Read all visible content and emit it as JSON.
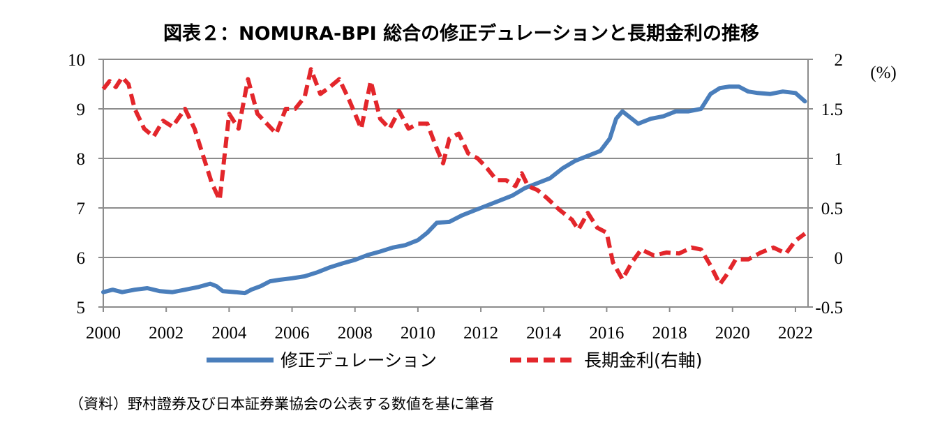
{
  "chart_data": {
    "type": "line",
    "title": "図表２：NOMURA-BPI 総合の修正デュレーションと長期金利の推移",
    "y2_unit": "(%)",
    "source": "（資料）野村證券及び日本証券業協会の公表する数値を基に筆者",
    "x_ticks": [
      "2000",
      "2002",
      "2004",
      "2006",
      "2008",
      "2010",
      "2012",
      "2014",
      "2016",
      "2018",
      "2020",
      "2022"
    ],
    "y_ticks": [
      "5",
      "6",
      "7",
      "8",
      "9",
      "10"
    ],
    "y2_ticks": [
      "-0.5",
      "0",
      "0.5",
      "1",
      "1.5",
      "2"
    ],
    "xlim": [
      2000,
      2022.4
    ],
    "ylim": [
      5,
      10
    ],
    "y2lim": [
      -0.5,
      2
    ],
    "grid": true,
    "legend_position": "bottom",
    "series": [
      {
        "name": "修正デュレーション",
        "axis": "left",
        "color": "#4a7ebb",
        "style": "solid",
        "x": [
          2000.0,
          2000.3,
          2000.6,
          2001.0,
          2001.4,
          2001.8,
          2002.2,
          2002.6,
          2003.0,
          2003.4,
          2003.6,
          2003.8,
          2004.2,
          2004.5,
          2004.7,
          2005.0,
          2005.3,
          2005.6,
          2006.0,
          2006.4,
          2006.8,
          2007.2,
          2007.6,
          2008.0,
          2008.4,
          2008.8,
          2009.2,
          2009.6,
          2010.0,
          2010.3,
          2010.6,
          2011.0,
          2011.4,
          2011.8,
          2012.2,
          2012.6,
          2013.0,
          2013.4,
          2013.8,
          2014.2,
          2014.6,
          2015.0,
          2015.4,
          2015.8,
          2016.1,
          2016.3,
          2016.5,
          2016.7,
          2017.0,
          2017.4,
          2017.8,
          2018.2,
          2018.6,
          2019.0,
          2019.3,
          2019.6,
          2019.9,
          2020.2,
          2020.5,
          2020.8,
          2021.2,
          2021.6,
          2022.0,
          2022.3
        ],
        "values": [
          5.3,
          5.35,
          5.3,
          5.35,
          5.38,
          5.32,
          5.3,
          5.35,
          5.4,
          5.47,
          5.42,
          5.32,
          5.3,
          5.28,
          5.35,
          5.42,
          5.52,
          5.55,
          5.58,
          5.62,
          5.7,
          5.8,
          5.88,
          5.95,
          6.05,
          6.12,
          6.2,
          6.25,
          6.35,
          6.5,
          6.7,
          6.72,
          6.85,
          6.95,
          7.05,
          7.15,
          7.25,
          7.4,
          7.5,
          7.6,
          7.8,
          7.95,
          8.05,
          8.15,
          8.4,
          8.8,
          8.95,
          8.85,
          8.7,
          8.8,
          8.85,
          8.95,
          8.95,
          9.0,
          9.3,
          9.42,
          9.45,
          9.45,
          9.35,
          9.32,
          9.3,
          9.35,
          9.32,
          9.15
        ]
      },
      {
        "name": "長期金利(右軸)",
        "axis": "right",
        "color": "#e3262b",
        "style": "dashed",
        "x": [
          2000.0,
          2000.2,
          2000.4,
          2000.6,
          2000.8,
          2001.0,
          2001.3,
          2001.6,
          2001.9,
          2002.2,
          2002.6,
          2002.9,
          2003.2,
          2003.45,
          2003.7,
          2004.0,
          2004.3,
          2004.6,
          2004.9,
          2005.2,
          2005.5,
          2005.8,
          2006.1,
          2006.4,
          2006.6,
          2006.9,
          2007.2,
          2007.5,
          2007.8,
          2008.2,
          2008.5,
          2008.8,
          2009.1,
          2009.4,
          2009.7,
          2010.0,
          2010.3,
          2010.6,
          2010.8,
          2011.0,
          2011.3,
          2011.6,
          2011.9,
          2012.2,
          2012.5,
          2012.8,
          2013.1,
          2013.3,
          2013.5,
          2013.8,
          2014.1,
          2014.5,
          2014.9,
          2015.1,
          2015.4,
          2015.7,
          2016.0,
          2016.2,
          2016.5,
          2016.8,
          2017.1,
          2017.5,
          2017.9,
          2018.3,
          2018.7,
          2019.0,
          2019.3,
          2019.6,
          2019.8,
          2020.1,
          2020.5,
          2020.9,
          2021.3,
          2021.7,
          2022.0,
          2022.3
        ],
        "values": [
          1.7,
          1.78,
          1.72,
          1.82,
          1.75,
          1.5,
          1.3,
          1.22,
          1.38,
          1.32,
          1.5,
          1.3,
          1.0,
          0.75,
          0.58,
          1.45,
          1.3,
          1.8,
          1.45,
          1.35,
          1.25,
          1.5,
          1.5,
          1.62,
          1.9,
          1.65,
          1.72,
          1.8,
          1.6,
          1.3,
          1.78,
          1.4,
          1.3,
          1.48,
          1.3,
          1.35,
          1.35,
          1.1,
          0.95,
          1.2,
          1.25,
          1.05,
          1.0,
          0.9,
          0.78,
          0.78,
          0.72,
          0.85,
          0.72,
          0.68,
          0.6,
          0.48,
          0.38,
          0.28,
          0.45,
          0.3,
          0.25,
          -0.05,
          -0.22,
          -0.05,
          0.08,
          0.02,
          0.05,
          0.04,
          0.1,
          0.08,
          -0.08,
          -0.27,
          -0.18,
          -0.02,
          -0.02,
          0.05,
          0.1,
          0.04,
          0.17,
          0.24
        ]
      }
    ]
  }
}
